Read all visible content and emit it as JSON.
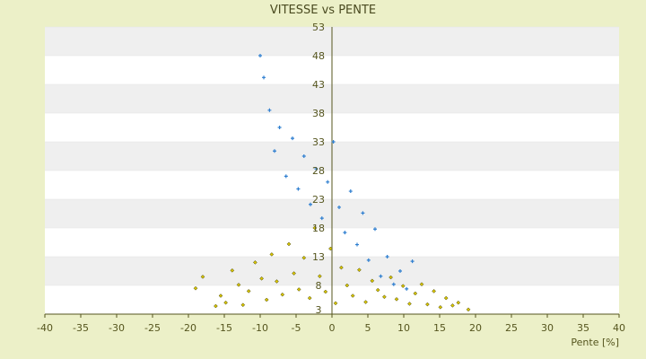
{
  "chart_data": {
    "type": "scatter",
    "title": "VITESSE vs PENTE",
    "xlabel": "Pente [%]",
    "ylabel": "",
    "xlim": [
      -40,
      40
    ],
    "ylim": [
      3,
      53
    ],
    "x_ticks": [
      -40,
      -35,
      -30,
      -25,
      -20,
      -15,
      -10,
      -5,
      0,
      5,
      10,
      15,
      20,
      25,
      30,
      35,
      40
    ],
    "y_ticks": [
      3,
      8,
      13,
      18,
      23,
      28,
      33,
      38,
      43,
      48,
      53
    ],
    "y_axis_at_x": 0,
    "grid": "horizontal bands",
    "legend": "none",
    "colors": {
      "background": "#ecf0c8",
      "plot_band_light": "#ffffff",
      "plot_band_dark": "#efefef",
      "axis": "#55551e",
      "series_yellow_fill": "#d8c400",
      "series_yellow_edge": "#3a3a00",
      "series_blue": "#2f7fd0"
    },
    "series": [
      {
        "color": "#d8c400",
        "marker": "diamond",
        "description_points": {
          "x": [
            -19.0,
            -18.0,
            -16.2,
            -15.5,
            -14.8,
            -13.9,
            -13.0,
            -12.4,
            -11.6,
            -10.7,
            -9.8,
            -9.1,
            -8.4,
            -7.7,
            -6.9,
            -6.0,
            -5.3,
            -4.6,
            -3.9,
            -3.1,
            -2.4,
            -1.7,
            -0.9,
            -0.2,
            0.5,
            1.3,
            2.1,
            2.9,
            3.8,
            4.7,
            5.6,
            6.4,
            7.3,
            8.2,
            9.0,
            9.9,
            10.8,
            11.6,
            12.5,
            13.3,
            14.2,
            15.1,
            15.9,
            16.8,
            17.6,
            19.0
          ],
          "y": [
            7.5,
            9.5,
            4.4,
            6.2,
            5.0,
            10.6,
            8.1,
            4.6,
            7.0,
            12.0,
            9.2,
            5.5,
            13.4,
            8.7,
            6.4,
            15.2,
            10.1,
            7.3,
            12.8,
            5.8,
            18.0,
            9.6,
            6.9,
            14.4,
            4.9,
            11.1,
            8.0,
            6.2,
            10.7,
            5.1,
            8.8,
            7.2,
            6.0,
            9.4,
            5.6,
            7.9,
            4.8,
            6.6,
            8.2,
            4.7,
            7.0,
            4.2,
            5.8,
            4.5,
            5.0,
            3.8
          ]
        }
      },
      {
        "color": "#2f7fd0",
        "marker": "plus",
        "description_points": {
          "x": [
            -10.0,
            -9.5,
            -8.7,
            -8.0,
            -7.3,
            -6.4,
            -5.5,
            -4.7,
            -3.9,
            -3.0,
            -2.2,
            -1.4,
            -0.6,
            0.2,
            1.0,
            1.8,
            2.6,
            3.5,
            4.3,
            5.1,
            6.0,
            6.8,
            7.7,
            8.6,
            9.5,
            10.4,
            11.2
          ],
          "y": [
            48.0,
            44.2,
            38.5,
            31.4,
            35.5,
            27.0,
            33.6,
            24.8,
            30.5,
            22.1,
            28.3,
            19.7,
            26.0,
            33.0,
            21.6,
            17.2,
            24.4,
            15.1,
            20.6,
            12.4,
            17.8,
            9.6,
            13.0,
            8.2,
            10.5,
            7.4,
            12.2
          ]
        }
      }
    ]
  }
}
